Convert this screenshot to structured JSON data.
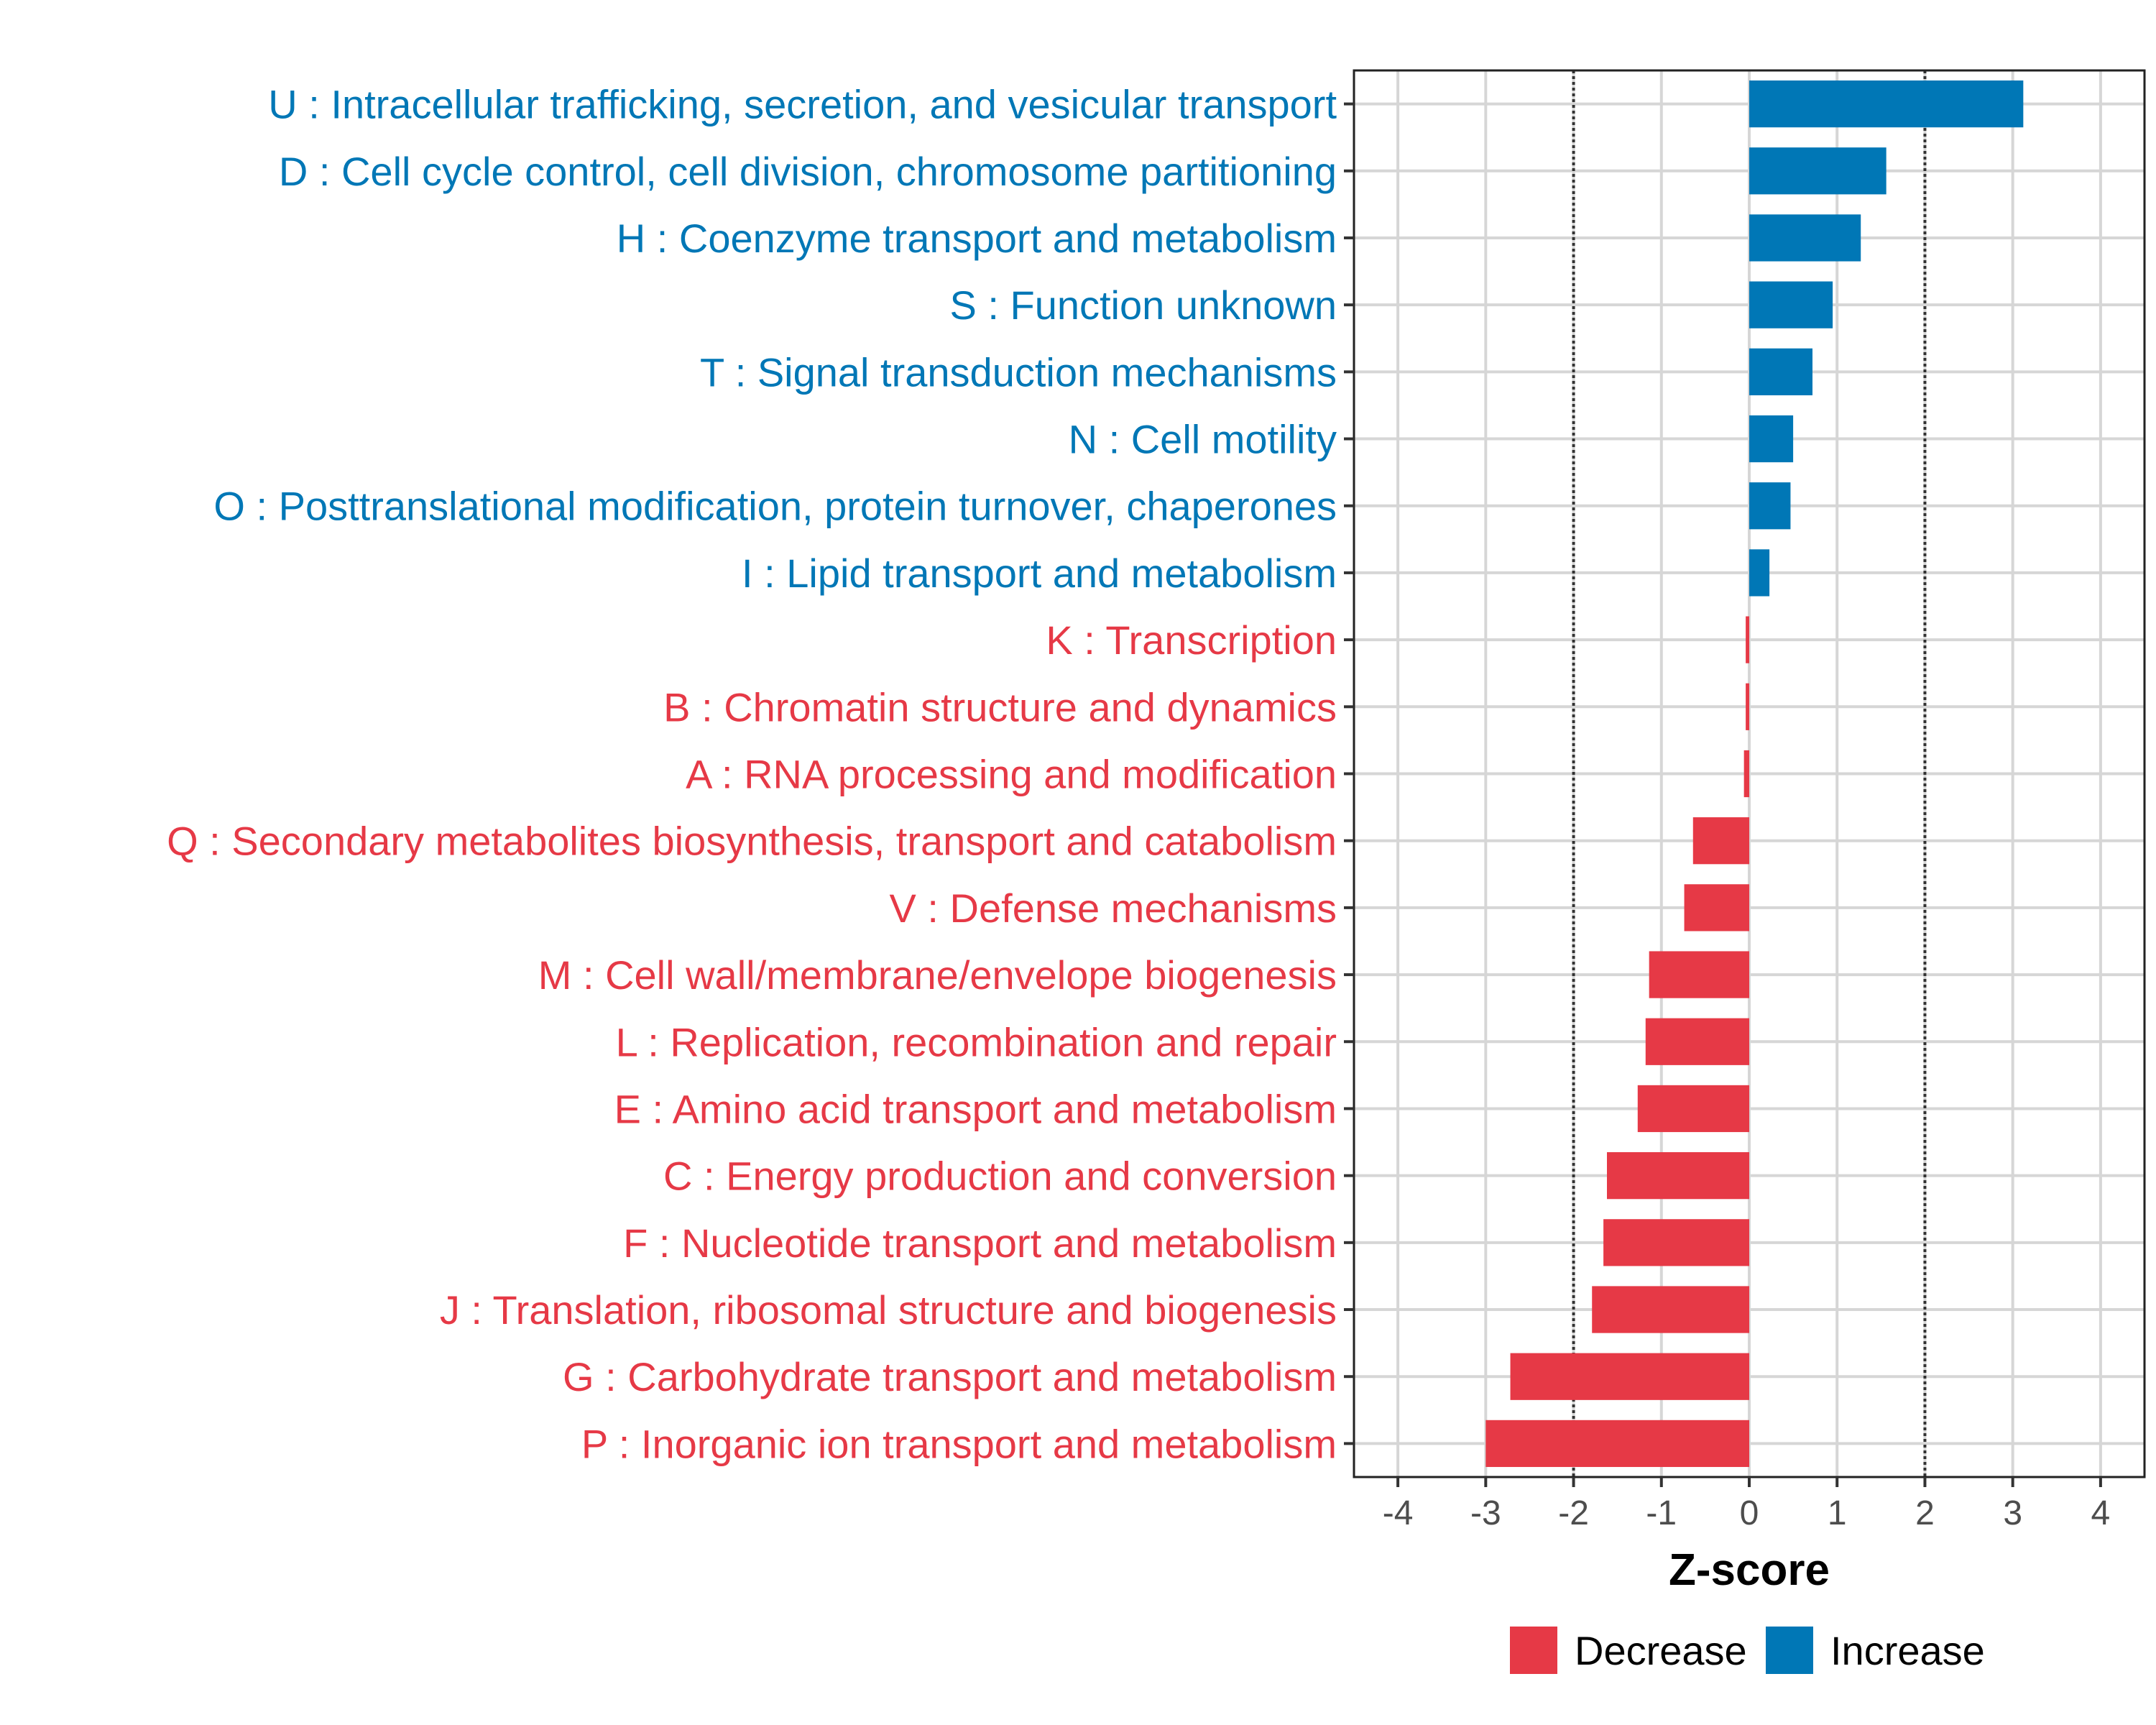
{
  "chart_data": {
    "type": "bar",
    "orientation": "horizontal",
    "title": "",
    "xlabel": "Z-score",
    "ylabel": "",
    "xlim": [
      -4.5,
      4.5
    ],
    "xticks": [
      -4,
      -3,
      -2,
      -1,
      0,
      1,
      2,
      3,
      4
    ],
    "reference_lines": [
      -2,
      2
    ],
    "grid": true,
    "categories": [
      "U : Intracellular trafficking, secretion, and vesicular transport",
      "D : Cell cycle control, cell division, chromosome partitioning",
      "H : Coenzyme transport and metabolism",
      "S : Function unknown",
      "T : Signal transduction mechanisms",
      "N : Cell motility",
      "O : Posttranslational modification, protein turnover, chaperones",
      "I : Lipid transport and metabolism",
      "K : Transcription",
      "B : Chromatin structure and dynamics",
      "A : RNA processing and modification",
      "Q : Secondary metabolites biosynthesis, transport and catabolism",
      "V : Defense mechanisms",
      "M : Cell wall/membrane/envelope biogenesis",
      "L : Replication, recombination and repair",
      "E : Amino acid transport and metabolism",
      "C : Energy production and conversion",
      "F : Nucleotide transport and metabolism",
      "J : Translation, ribosomal structure and biogenesis",
      "G : Carbohydrate transport and metabolism",
      "P : Inorganic ion transport and metabolism"
    ],
    "values": [
      3.12,
      1.56,
      1.27,
      0.95,
      0.72,
      0.5,
      0.47,
      0.23,
      -0.04,
      -0.04,
      -0.06,
      -0.64,
      -0.74,
      -1.14,
      -1.18,
      -1.27,
      -1.62,
      -1.66,
      -1.79,
      -2.72,
      -3.0
    ],
    "groups": [
      "Increase",
      "Increase",
      "Increase",
      "Increase",
      "Increase",
      "Increase",
      "Increase",
      "Increase",
      "Decrease",
      "Decrease",
      "Decrease",
      "Decrease",
      "Decrease",
      "Decrease",
      "Decrease",
      "Decrease",
      "Decrease",
      "Decrease",
      "Decrease",
      "Decrease",
      "Decrease"
    ],
    "legend": {
      "position": "bottom",
      "items": [
        {
          "label": "Decrease",
          "color": "#E63946"
        },
        {
          "label": "Increase",
          "color": "#0077B6"
        }
      ]
    },
    "colors": {
      "Decrease": "#E63946",
      "Increase": "#0077B6"
    }
  }
}
